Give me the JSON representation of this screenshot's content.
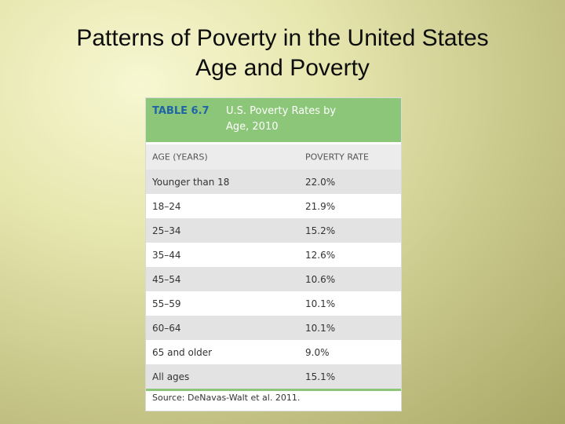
{
  "slide": {
    "title_line1": "Patterns of Poverty in the United States",
    "title_line2": "Age and Poverty"
  },
  "table": {
    "label": "TABLE 6.7",
    "caption_line1": "U.S. Poverty Rates by",
    "caption_line2": "Age, 2010",
    "columns": [
      "AGE (YEARS)",
      "POVERTY RATE"
    ],
    "rows": [
      {
        "age": "Younger than 18",
        "rate": "22.0%"
      },
      {
        "age": "18–24",
        "rate": "21.9%"
      },
      {
        "age": "25–34",
        "rate": "15.2%"
      },
      {
        "age": "35–44",
        "rate": "12.6%"
      },
      {
        "age": "45–54",
        "rate": "10.6%"
      },
      {
        "age": "55–59",
        "rate": "10.1%"
      },
      {
        "age": "60–64",
        "rate": "10.1%"
      },
      {
        "age": "65 and older",
        "rate": "9.0%"
      },
      {
        "age": "All ages",
        "rate": "15.1%"
      }
    ],
    "source": "Source: DeNavas-Walt et al. 2011.",
    "colors": {
      "header_green": "#8cc779",
      "label_blue": "#1e64a7",
      "row_shade": "#e3e3e3"
    }
  }
}
